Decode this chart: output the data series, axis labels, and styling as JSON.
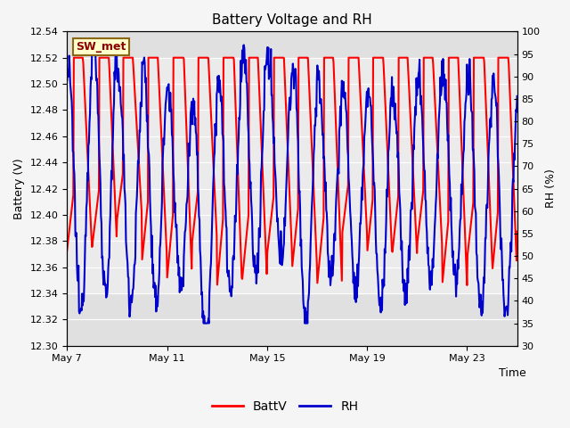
{
  "title": "Battery Voltage and RH",
  "xlabel": "Time",
  "ylabel_left": "Battery (V)",
  "ylabel_right": "RH (%)",
  "ylim_left": [
    12.3,
    12.54
  ],
  "ylim_right": [
    30,
    100
  ],
  "yticks_left": [
    12.3,
    12.32,
    12.34,
    12.36,
    12.38,
    12.4,
    12.42,
    12.44,
    12.46,
    12.48,
    12.5,
    12.52,
    12.54
  ],
  "yticks_right": [
    30,
    35,
    40,
    45,
    50,
    55,
    60,
    65,
    70,
    75,
    80,
    85,
    90,
    95,
    100
  ],
  "xtick_positions": [
    0,
    4,
    8,
    12,
    16
  ],
  "xtick_labels": [
    "May 7",
    "May 11",
    "May 15",
    "May 19",
    "May 23"
  ],
  "station_label": "SW_met",
  "legend_labels": [
    "BattV",
    "RH"
  ],
  "color_battv": "#ff0000",
  "color_rh": "#0000cc",
  "plot_bg_color": "#e0e0e0",
  "inner_band_color": "#ebebeb",
  "inner_band_low_volt": 12.34,
  "inner_band_high_volt": 12.52,
  "fig_bg_color": "#f5f5f5",
  "num_days": 18,
  "linewidth_battv": 1.5,
  "linewidth_rh": 1.5,
  "title_fontsize": 11,
  "label_fontsize": 9,
  "tick_fontsize": 8,
  "legend_fontsize": 10
}
